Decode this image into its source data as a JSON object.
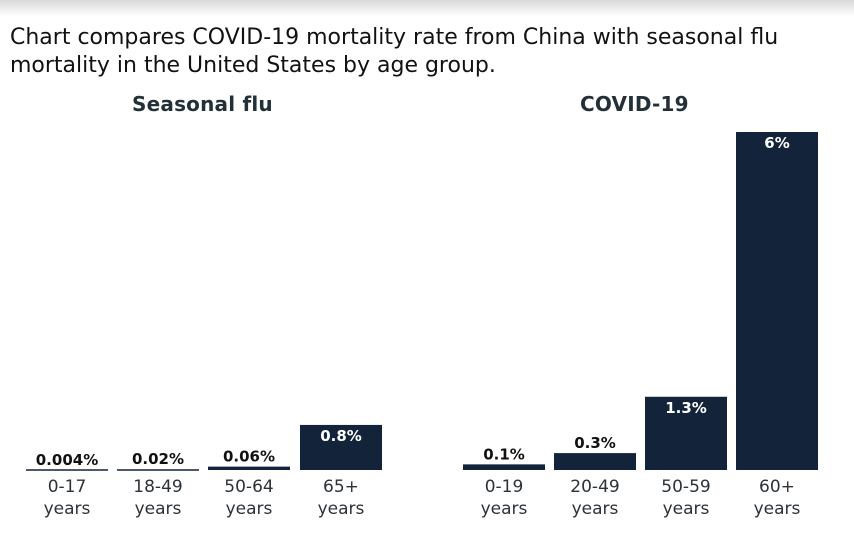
{
  "header": {
    "title": "Chart compares COVID-19 mortality rate from China with seasonal flu mortality in the United States by age group."
  },
  "colors": {
    "bar": "#13243a",
    "text": "#111111"
  },
  "chart_data": [
    {
      "type": "bar",
      "title": "Seasonal flu",
      "categories": [
        "0-17 years",
        "18-49 years",
        "50-64 years",
        "65+ years"
      ],
      "category_lines": [
        [
          "0-17",
          "years"
        ],
        [
          "18-49",
          "years"
        ],
        [
          "50-64",
          "years"
        ],
        [
          "65+",
          "years"
        ]
      ],
      "values": [
        0.004,
        0.02,
        0.06,
        0.8
      ],
      "data_labels": [
        "0.004%",
        "0.02%",
        "0.06%",
        "0.8%"
      ],
      "unit": "%",
      "ylim": [
        0,
        6
      ],
      "grid": false
    },
    {
      "type": "bar",
      "title": "COVID-19",
      "categories": [
        "0-19 years",
        "20-49 years",
        "50-59 years",
        "60+ years"
      ],
      "category_lines": [
        [
          "0-19",
          "years"
        ],
        [
          "20-49",
          "years"
        ],
        [
          "50-59",
          "years"
        ],
        [
          "60+",
          "years"
        ]
      ],
      "values": [
        0.1,
        0.3,
        1.3,
        6
      ],
      "data_labels": [
        "0.1%",
        "0.3%",
        "1.3%",
        "6%"
      ],
      "unit": "%",
      "ylim": [
        0,
        6
      ],
      "grid": false
    }
  ]
}
